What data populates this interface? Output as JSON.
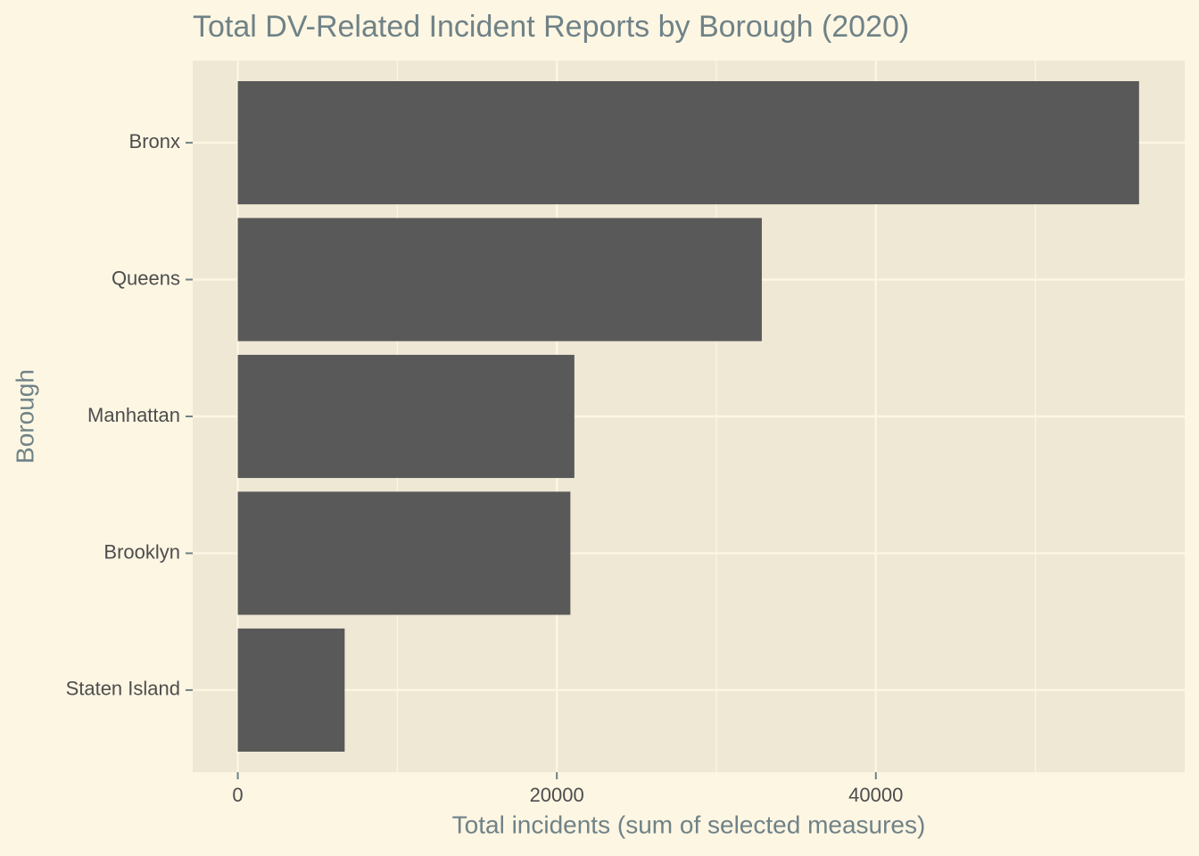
{
  "chart_data": {
    "type": "bar",
    "orientation": "horizontal",
    "title": "Total DV-Related Incident Reports by Borough (2020)",
    "x_label": "Total incidents (sum of selected measures)",
    "y_label": "Borough",
    "categories": [
      "Bronx",
      "Queens",
      "Manhattan",
      "Brooklyn",
      "Staten Island"
    ],
    "values": [
      56500,
      32850,
      21100,
      20850,
      6700
    ],
    "color": "#595959",
    "xlim": [
      -2827,
      59363
    ],
    "xticks": [
      0,
      20000,
      40000
    ],
    "x_minor_grid": [
      10000,
      30000,
      50000
    ],
    "grid": true
  }
}
